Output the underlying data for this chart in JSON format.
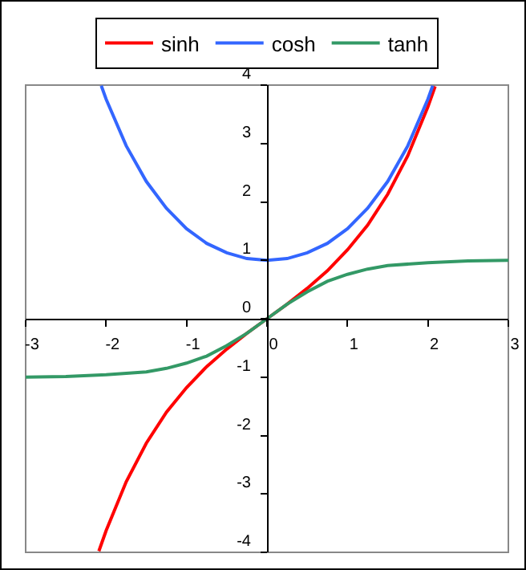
{
  "chart_data": {
    "type": "line",
    "xlim": [
      -3,
      3
    ],
    "ylim": [
      -4,
      4
    ],
    "xticks": [
      -3,
      -2,
      -1,
      0,
      1,
      2,
      3
    ],
    "yticks": [
      -4,
      -3,
      -2,
      -1,
      0,
      1,
      2,
      3,
      4
    ],
    "grid": false,
    "legend": "top",
    "marker": "none",
    "series": [
      {
        "name": "sinh",
        "color": "#ff0000",
        "x": [
          -2.09,
          -2,
          -1.75,
          -1.5,
          -1.25,
          -1,
          -0.75,
          -0.5,
          -0.25,
          0,
          0.25,
          0.5,
          0.75,
          1,
          1.25,
          1.5,
          1.75,
          2,
          2.09
        ],
        "values": [
          -3.98,
          -3.63,
          -2.79,
          -2.13,
          -1.6,
          -1.18,
          -0.82,
          -0.52,
          -0.25,
          0,
          0.25,
          0.52,
          0.82,
          1.18,
          1.6,
          2.13,
          2.79,
          3.63,
          3.98
        ]
      },
      {
        "name": "cosh",
        "color": "#3366ff",
        "x": [
          -2.06,
          -2,
          -1.75,
          -1.5,
          -1.25,
          -1,
          -0.75,
          -0.5,
          -0.25,
          0,
          0.25,
          0.5,
          0.75,
          1,
          1.25,
          1.5,
          1.75,
          2,
          2.06
        ],
        "values": [
          3.99,
          3.76,
          2.96,
          2.35,
          1.89,
          1.54,
          1.29,
          1.13,
          1.03,
          1,
          1.03,
          1.13,
          1.29,
          1.54,
          1.89,
          2.35,
          2.96,
          3.76,
          3.99
        ]
      },
      {
        "name": "tanh",
        "color": "#339966",
        "x": [
          -3,
          -2.5,
          -2,
          -1.5,
          -1.25,
          -1,
          -0.75,
          -0.5,
          -0.25,
          0,
          0.25,
          0.5,
          0.75,
          1,
          1.25,
          1.5,
          2,
          2.5,
          3
        ],
        "values": [
          -1,
          -0.99,
          -0.96,
          -0.91,
          -0.85,
          -0.76,
          -0.64,
          -0.46,
          -0.25,
          0,
          0.25,
          0.46,
          0.64,
          0.76,
          0.85,
          0.91,
          0.96,
          0.99,
          1
        ]
      }
    ]
  }
}
